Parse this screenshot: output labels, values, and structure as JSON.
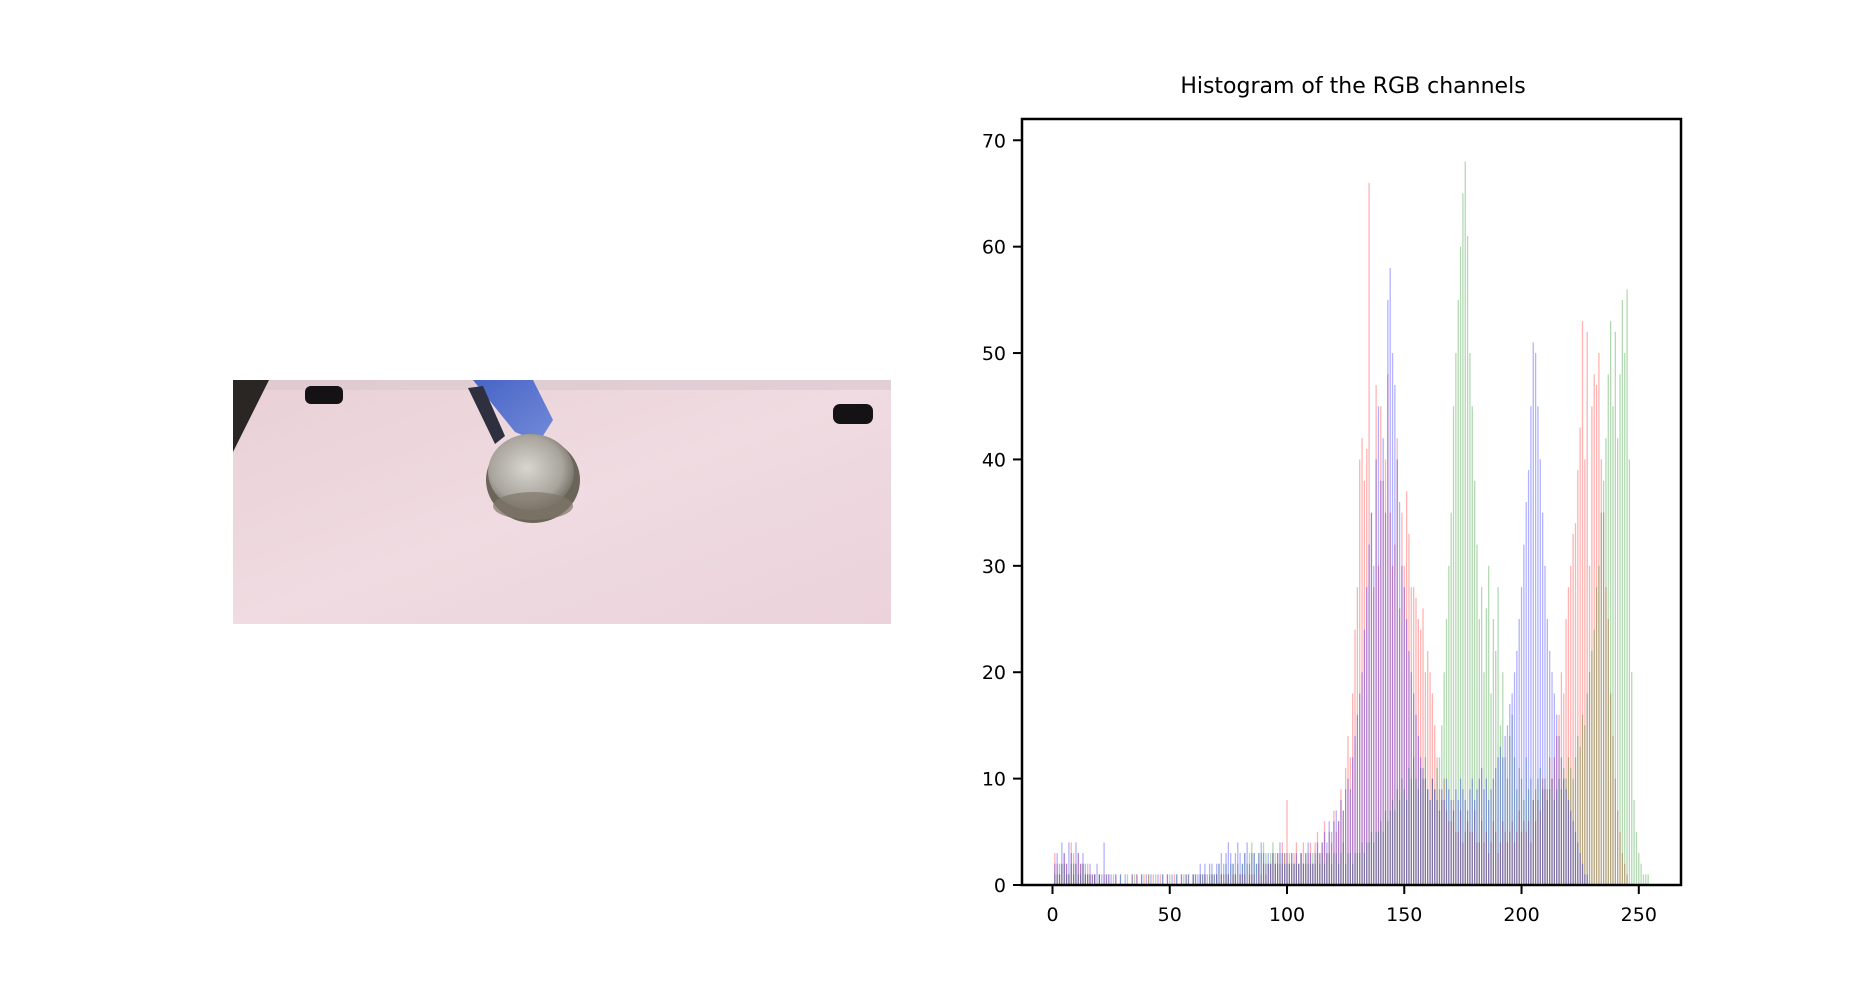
{
  "photo": {
    "icon": "measuring-cup-photo",
    "colors": {
      "table": "#ead6dc",
      "cup": "#9a968e",
      "handle": "#4f6fd0"
    }
  },
  "chart_data": {
    "type": "bar",
    "title": "Histogram of the RGB channels",
    "xlabel": "",
    "ylabel": "",
    "xlim": [
      -13,
      268
    ],
    "ylim": [
      0,
      72
    ],
    "xticks": [
      0,
      50,
      100,
      150,
      200,
      250
    ],
    "yticks": [
      0,
      10,
      20,
      30,
      40,
      50,
      60,
      70
    ],
    "legend": "none",
    "grid": false,
    "bin_width": 1,
    "series": [
      {
        "color": "#ff0000",
        "opacity": 0.3,
        "values": [
          0,
          3,
          2,
          1,
          2,
          3,
          2,
          1,
          4,
          3,
          2,
          3,
          2,
          2,
          1,
          2,
          1,
          1,
          1,
          0,
          1,
          0,
          1,
          0,
          1,
          0,
          0,
          1,
          0,
          0,
          0,
          0,
          0,
          0,
          1,
          0,
          1,
          0,
          0,
          1,
          0,
          1,
          0,
          1,
          0,
          0,
          1,
          0,
          0,
          1,
          0,
          0,
          1,
          0,
          0,
          1,
          0,
          1,
          0,
          0,
          1,
          0,
          0,
          1,
          0,
          1,
          0,
          0,
          1,
          0,
          1,
          0,
          1,
          0,
          1,
          1,
          0,
          1,
          1,
          0,
          1,
          1,
          1,
          0,
          1,
          1,
          1,
          0,
          2,
          1,
          2,
          1,
          2,
          2,
          3,
          2,
          3,
          2,
          4,
          3,
          8,
          3,
          2,
          3,
          4,
          2,
          3,
          4,
          2,
          3,
          4,
          2,
          4,
          5,
          3,
          4,
          6,
          3,
          5,
          4,
          7,
          5,
          6,
          9,
          7,
          11,
          14,
          12,
          18,
          24,
          28,
          40,
          42,
          38,
          41,
          66,
          35,
          28,
          47,
          30,
          45,
          38,
          40,
          48,
          35,
          30,
          32,
          42,
          26,
          35,
          30,
          37,
          33,
          28,
          28,
          27,
          25,
          24,
          26,
          20,
          22,
          20,
          18,
          15,
          12,
          9,
          8,
          10,
          7,
          6,
          6,
          8,
          5,
          5,
          7,
          4,
          5,
          6,
          5,
          5,
          7,
          4,
          4,
          6,
          4,
          5,
          3,
          4,
          6,
          5,
          3,
          4,
          6,
          5,
          4,
          5,
          6,
          4,
          5,
          7,
          5,
          6,
          5,
          6,
          4,
          8,
          6,
          8,
          7,
          10,
          9,
          9,
          12,
          10,
          12,
          14,
          16,
          20,
          18,
          25,
          28,
          30,
          33,
          34,
          39,
          43,
          53,
          40,
          52,
          30,
          45,
          48,
          47,
          50,
          40,
          35,
          28,
          25,
          18,
          14,
          10,
          7,
          5,
          3,
          2,
          1,
          0,
          0,
          0,
          0,
          0,
          0,
          0
        ]
      },
      {
        "color": "#008000",
        "opacity": 0.3,
        "values": [
          0,
          1,
          1,
          1,
          2,
          2,
          1,
          1,
          2,
          1,
          2,
          1,
          1,
          2,
          1,
          1,
          1,
          0,
          1,
          0,
          1,
          0,
          0,
          1,
          0,
          0,
          1,
          0,
          0,
          1,
          0,
          0,
          1,
          0,
          0,
          1,
          0,
          0,
          1,
          0,
          0,
          1,
          0,
          0,
          1,
          0,
          0,
          1,
          0,
          0,
          1,
          0,
          0,
          1,
          0,
          0,
          1,
          0,
          1,
          0,
          1,
          1,
          0,
          1,
          1,
          1,
          0,
          1,
          1,
          1,
          1,
          2,
          1,
          1,
          2,
          1,
          2,
          2,
          1,
          2,
          1,
          2,
          3,
          2,
          3,
          4,
          3,
          2,
          3,
          3,
          4,
          3,
          2,
          3,
          4,
          3,
          2,
          3,
          2,
          3,
          2,
          2,
          3,
          2,
          2,
          2,
          3,
          2,
          3,
          2,
          2,
          3,
          2,
          3,
          2,
          3,
          2,
          3,
          3,
          2,
          3,
          3,
          2,
          3,
          4,
          2,
          3,
          3,
          2,
          3,
          3,
          3,
          4,
          3,
          4,
          4,
          5,
          4,
          5,
          5,
          6,
          5,
          7,
          6,
          7,
          8,
          7,
          9,
          8,
          10,
          9,
          8,
          11,
          10,
          12,
          10,
          9,
          11,
          10,
          12,
          9,
          8,
          10,
          9,
          11,
          12,
          15,
          20,
          25,
          30,
          35,
          45,
          50,
          55,
          60,
          65,
          68,
          61,
          50,
          45,
          38,
          32,
          25,
          28,
          20,
          26,
          30,
          18,
          25,
          22,
          28,
          15,
          20,
          12,
          10,
          14,
          16,
          12,
          9,
          11,
          10,
          8,
          12,
          9,
          10,
          8,
          9,
          10,
          11,
          9,
          10,
          8,
          9,
          10,
          8,
          9,
          10,
          9,
          11,
          10,
          12,
          11,
          10,
          12,
          14,
          13,
          16,
          15,
          18,
          20,
          22,
          24,
          28,
          30,
          35,
          38,
          42,
          48,
          53,
          45,
          52,
          42,
          48,
          55,
          50,
          56,
          40,
          20,
          8,
          5,
          3,
          2,
          1,
          1,
          1
        ]
      },
      {
        "color": "#0000ff",
        "opacity": 0.3,
        "values": [
          0,
          2,
          3,
          2,
          4,
          3,
          2,
          4,
          3,
          2,
          4,
          3,
          2,
          3,
          2,
          1,
          2,
          1,
          1,
          2,
          1,
          1,
          4,
          1,
          1,
          1,
          0,
          1,
          0,
          1,
          0,
          1,
          0,
          0,
          1,
          0,
          1,
          0,
          1,
          0,
          1,
          0,
          1,
          0,
          0,
          1,
          0,
          1,
          0,
          1,
          0,
          1,
          0,
          1,
          0,
          1,
          0,
          1,
          1,
          0,
          1,
          1,
          1,
          2,
          1,
          2,
          1,
          2,
          2,
          1,
          2,
          2,
          3,
          2,
          3,
          4,
          3,
          2,
          3,
          4,
          3,
          2,
          3,
          4,
          2,
          3,
          3,
          2,
          3,
          4,
          3,
          2,
          3,
          2,
          3,
          2,
          3,
          4,
          3,
          2,
          3,
          2,
          3,
          2,
          3,
          2,
          3,
          2,
          3,
          4,
          3,
          2,
          3,
          4,
          3,
          4,
          5,
          4,
          6,
          5,
          6,
          7,
          6,
          8,
          7,
          9,
          10,
          9,
          12,
          14,
          16,
          18,
          20,
          24,
          28,
          32,
          35,
          30,
          40,
          45,
          38,
          42,
          35,
          55,
          58,
          50,
          47,
          40,
          36,
          30,
          28,
          25,
          22,
          20,
          18,
          16,
          14,
          12,
          11,
          10,
          9,
          8,
          10,
          9,
          8,
          7,
          9,
          8,
          10,
          9,
          8,
          7,
          9,
          8,
          10,
          9,
          8,
          7,
          9,
          10,
          8,
          9,
          10,
          11,
          9,
          10,
          8,
          9,
          10,
          11,
          12,
          13,
          12,
          14,
          15,
          17,
          18,
          20,
          22,
          25,
          28,
          32,
          36,
          39,
          45,
          51,
          50,
          45,
          40,
          35,
          30,
          25,
          22,
          20,
          18,
          16,
          14,
          12,
          10,
          9,
          8,
          7,
          6,
          5,
          4,
          3,
          2,
          1,
          1,
          0,
          0,
          0,
          0,
          0,
          0,
          0,
          0,
          0,
          0,
          0,
          0,
          0,
          0,
          0,
          0,
          0,
          0,
          0,
          0
        ]
      }
    ]
  }
}
